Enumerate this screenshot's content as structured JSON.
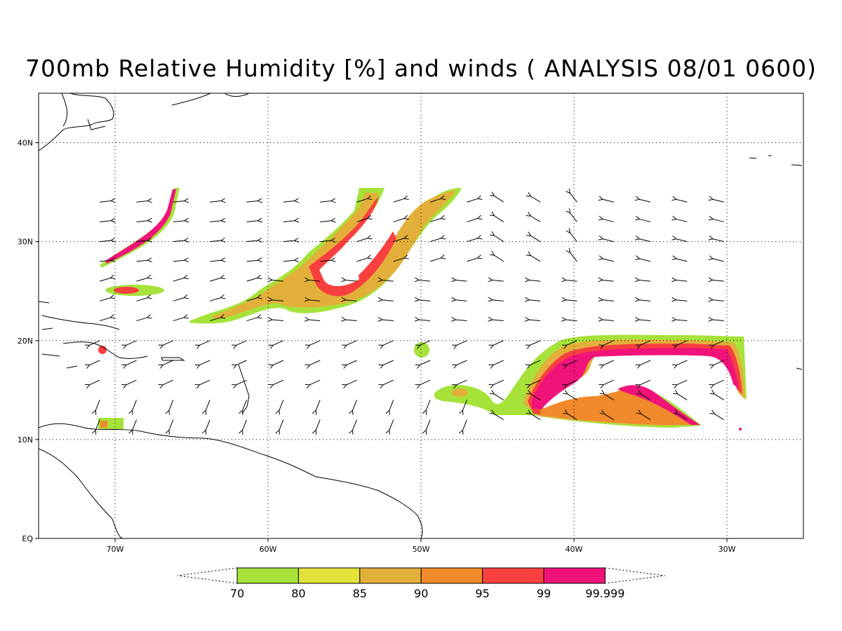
{
  "title": "700mb Relative Humidity [%] and winds ( ANALYSIS 08/01 0600)",
  "map": {
    "lon_range": [
      -75,
      -25
    ],
    "lat_range": [
      0,
      45
    ],
    "lon_ticks": [
      {
        "value": -70,
        "label": "70W"
      },
      {
        "value": -60,
        "label": "60W"
      },
      {
        "value": -50,
        "label": "50W"
      },
      {
        "value": -40,
        "label": "40W"
      },
      {
        "value": -30,
        "label": "30W"
      }
    ],
    "lat_ticks": [
      {
        "value": 0,
        "label": "EQ"
      },
      {
        "value": 10,
        "label": "10N"
      },
      {
        "value": 20,
        "label": "20N"
      },
      {
        "value": 30,
        "label": "30N"
      },
      {
        "value": 40,
        "label": "40N"
      }
    ],
    "gridlines": "dotted",
    "colors": {
      "land_outline": "#000000",
      "ocean": "#ffffff"
    }
  },
  "colorbar": {
    "levels": [
      "70",
      "80",
      "85",
      "90",
      "95",
      "99",
      "99.999"
    ],
    "colors": [
      "#a6e23a",
      "#e2e23a",
      "#e2b03a",
      "#f08a2a",
      "#f84040",
      "#f0147a"
    ]
  },
  "humidity_contour_colors": {
    "70": "#a6e23a",
    "80": "#e2e23a",
    "85": "#e2b03a",
    "90": "#f08a2a",
    "95": "#f84040",
    "99": "#f0147a"
  },
  "wind_field": {
    "lon_start": -71,
    "lon_step": 2.4,
    "lat_start": 12,
    "lat_step": 2,
    "lat_end": 34,
    "lon_end": -29,
    "arrow_color": "#000000"
  }
}
